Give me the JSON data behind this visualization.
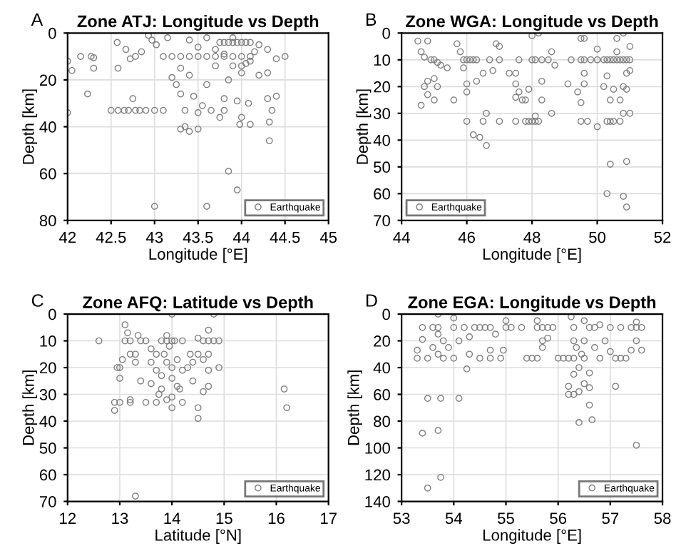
{
  "chart_data": [
    {
      "type": "scatter",
      "title": "Zone ATJ: Longitude vs Depth",
      "xlabel": "Longitude [°E]",
      "ylabel": "Depth [km]",
      "annotations": [
        "A"
      ],
      "xlim": [
        42,
        45
      ],
      "xticks": [
        42,
        42.5,
        43,
        43.5,
        44,
        44.5,
        45
      ],
      "ylim": [
        80,
        0
      ],
      "yticks": [
        0,
        20,
        40,
        60,
        80
      ],
      "grid": true,
      "legend": "bottom right",
      "marker": "circle",
      "series": [
        {
          "name": "Earthquake",
          "color": "#7f7f7f",
          "x": [
            42.0,
            42.05,
            42.15,
            42.27,
            42.3,
            42.3,
            42.23,
            42.0,
            42.5,
            42.58,
            42.65,
            42.7,
            42.78,
            42.83,
            42.9,
            43.0,
            43.1,
            42.57,
            42.58,
            42.67,
            42.72,
            42.78,
            42.85,
            42.75,
            42.93,
            42.97,
            43.0,
            43.02,
            43.1,
            43.2,
            43.3,
            43.4,
            43.5,
            43.6,
            43.7,
            43.8,
            43.9,
            44.0,
            44.1,
            43.15,
            43.2,
            43.25,
            43.3,
            43.35,
            43.3,
            43.4,
            43.35,
            43.5,
            43.5,
            43.55,
            43.6,
            43.75,
            43.8,
            43.85,
            43.9,
            43.95,
            44.0,
            44.05,
            44.1,
            43.9,
            44.0,
            44.05,
            44.1,
            43.7,
            43.4,
            43.5,
            43.6,
            43.7,
            43.8,
            44.2,
            44.3,
            44.4,
            44.5,
            44.3,
            44.2,
            43.85,
            43.8,
            43.8,
            43.85,
            43.95,
            43.95,
            44.0,
            43.98,
            44.08,
            44.1,
            44.3,
            44.35,
            44.4,
            44.32,
            44.32,
            43.75,
            43.65,
            43.45,
            43.6,
            43.4,
            43.3,
            44.15,
            43.9,
            44.0
          ],
          "values": [
            12,
            16,
            10,
            10,
            10.5,
            15,
            26,
            34,
            33,
            33,
            33,
            33,
            33,
            33,
            33,
            33,
            33,
            4,
            15,
            7,
            11,
            10,
            8,
            28,
            1,
            3,
            74,
            5,
            10,
            10,
            10,
            10,
            10,
            10,
            10,
            10,
            10,
            10,
            10,
            2,
            19,
            22,
            26,
            33,
            41,
            42,
            40,
            41,
            34,
            31,
            74,
            4,
            4,
            4,
            4,
            4,
            4,
            4,
            4,
            14,
            14,
            13,
            12,
            14,
            3,
            6,
            2,
            7,
            9,
            5,
            7,
            11,
            10,
            17,
            18,
            20,
            28,
            33,
            59,
            67,
            29,
            36,
            39,
            30,
            39,
            28,
            33,
            27,
            38,
            46,
            36,
            33,
            27,
            22,
            18,
            15,
            8,
            2,
            17
          ]
        }
      ]
    },
    {
      "type": "scatter",
      "title": "Zone WGA: Longitude vs Depth",
      "xlabel": "Longitude [°E]",
      "ylabel": "Depth [km]",
      "annotations": [
        "B"
      ],
      "xlim": [
        44,
        52
      ],
      "xticks": [
        44,
        46,
        48,
        50,
        52
      ],
      "ylim": [
        70,
        0
      ],
      "yticks": [
        0,
        10,
        20,
        30,
        40,
        50,
        60,
        70
      ],
      "grid": true,
      "legend": "bottom left",
      "marker": "circle",
      "series": [
        {
          "name": "Earthquake",
          "color": "#7f7f7f",
          "x": [
            44.5,
            44.6,
            44.7,
            44.8,
            44.9,
            45.0,
            45.1,
            45.2,
            45.4,
            44.8,
            44.7,
            44.8,
            44.6,
            45.0,
            45.0,
            45.1,
            45.6,
            45.7,
            45.8,
            45.9,
            46.0,
            46.1,
            46.2,
            46.3,
            45.9,
            46.0,
            46.0,
            46.0,
            46.2,
            46.4,
            46.6,
            46.5,
            46.6,
            46.3,
            46.5,
            46.7,
            46.8,
            46.9,
            47.0,
            47.0,
            47.0,
            47.3,
            47.5,
            47.5,
            47.5,
            47.5,
            47.7,
            47.8,
            47.6,
            47.8,
            47.9,
            48.0,
            48.1,
            48.2,
            48.1,
            47.9,
            48.0,
            48.2,
            48.1,
            48.0,
            47.6,
            48.3,
            48.5,
            48.3,
            48.6,
            48.3,
            48.6,
            48.7,
            49.1,
            49.2,
            49.5,
            49.6,
            49.8,
            49.4,
            49.5,
            49.5,
            49.7,
            49.6,
            49.6,
            49.5,
            49.6,
            50.0,
            50.0,
            50.0,
            50.2,
            50.3,
            50.4,
            50.5,
            50.6,
            50.7,
            50.8,
            50.9,
            51.0,
            50.2,
            50.3,
            50.4,
            50.5,
            50.7,
            50.4,
            50.5,
            50.4,
            50.3,
            50.8,
            50.9,
            50.9,
            50.8,
            51.0,
            50.7,
            50.6,
            50.8,
            51.0,
            50.9,
            51.0,
            50.8,
            50.9,
            50.3,
            50.6
          ],
          "values": [
            3,
            7,
            9,
            3,
            10,
            10,
            11,
            12,
            13,
            18,
            20,
            23,
            27,
            25,
            17,
            20,
            25,
            4,
            7,
            10,
            10,
            10,
            10,
            10,
            13,
            19,
            22,
            33,
            38,
            39,
            42,
            33,
            30,
            18,
            15,
            10,
            14,
            4,
            5,
            33,
            10,
            15,
            15,
            19,
            24,
            33,
            25,
            25,
            22,
            33,
            33,
            33,
            33,
            33,
            31,
            21,
            1,
            0,
            10,
            10,
            10,
            10,
            10,
            18,
            30,
            25,
            7,
            12,
            19,
            10,
            10,
            10,
            10,
            22,
            26,
            33,
            33,
            19,
            15,
            2,
            2,
            6,
            10,
            35,
            10,
            10,
            10,
            10,
            10,
            10,
            10,
            10,
            10,
            20,
            33,
            33,
            33,
            33,
            25,
            21,
            49,
            60,
            61,
            65,
            48,
            30,
            30,
            25,
            2,
            0,
            5,
            15,
            14,
            20,
            21,
            16,
            7
          ]
        }
      ]
    },
    {
      "type": "scatter",
      "title": "Zone AFQ: Latitude vs Depth",
      "xlabel": "Latitude [°N]",
      "ylabel": "Depth [km]",
      "annotations": [
        "C"
      ],
      "xlim": [
        12,
        17
      ],
      "xticks": [
        12,
        13,
        14,
        15,
        16,
        17
      ],
      "ylim": [
        70,
        0
      ],
      "yticks": [
        0,
        10,
        20,
        30,
        40,
        50,
        60,
        70
      ],
      "grid": true,
      "legend": "bottom right",
      "marker": "circle",
      "series": [
        {
          "name": "Earthquake",
          "color": "#7f7f7f",
          "x": [
            12.6,
            12.9,
            12.9,
            13.0,
            12.95,
            13.0,
            13.0,
            13.05,
            13.1,
            13.1,
            13.15,
            13.2,
            13.2,
            13.2,
            13.2,
            13.3,
            13.3,
            13.3,
            13.35,
            13.4,
            13.4,
            13.5,
            13.5,
            13.6,
            13.6,
            13.6,
            13.7,
            13.7,
            13.7,
            13.75,
            13.8,
            13.8,
            13.8,
            13.85,
            13.9,
            13.9,
            13.9,
            13.9,
            13.95,
            14.0,
            14.0,
            14.0,
            14.0,
            14.0,
            14.0,
            14.05,
            14.1,
            14.1,
            14.15,
            14.2,
            14.2,
            14.2,
            14.3,
            14.35,
            14.4,
            14.4,
            14.5,
            14.5,
            14.5,
            14.5,
            14.6,
            14.6,
            14.6,
            14.7,
            14.7,
            14.7,
            14.7,
            14.7,
            14.8,
            14.8,
            14.9,
            14.9,
            16.15,
            16.2
          ],
          "values": [
            10,
            36,
            33,
            33,
            20,
            24,
            20,
            17,
            10,
            4,
            7,
            10,
            15,
            32,
            33,
            15,
            18,
            68,
            8,
            10,
            25,
            10,
            33,
            18,
            13,
            26,
            33,
            21,
            15,
            30,
            10,
            23,
            28,
            15,
            10,
            32,
            18,
            8,
            12,
            10,
            0,
            20,
            24,
            31,
            35,
            10,
            17,
            27,
            28,
            10,
            21,
            33,
            20,
            15,
            18,
            25,
            9,
            15,
            35,
            39,
            10,
            17,
            29,
            6,
            10,
            15,
            21,
            27,
            0,
            10,
            10,
            20,
            28,
            35
          ]
        }
      ]
    },
    {
      "type": "scatter",
      "title": "Zone EGA: Longitude vs Depth",
      "xlabel": "Longitude [°E]",
      "ylabel": "Depth [km]",
      "annotations": [
        "D"
      ],
      "xlim": [
        53,
        58
      ],
      "xticks": [
        53,
        54,
        55,
        56,
        57,
        58
      ],
      "ylim": [
        140,
        0
      ],
      "yticks": [
        0,
        20,
        40,
        60,
        80,
        100,
        120,
        140
      ],
      "grid": true,
      "legend": "bottom right",
      "marker": "circle",
      "series": [
        {
          "name": "Earthquake",
          "color": "#7f7f7f",
          "x": [
            53.3,
            53.3,
            53.4,
            53.4,
            53.4,
            53.5,
            53.5,
            53.5,
            53.6,
            53.6,
            53.7,
            53.7,
            53.7,
            53.7,
            53.7,
            53.75,
            53.75,
            53.8,
            53.8,
            53.9,
            54.0,
            54.0,
            54.0,
            54.1,
            54.1,
            54.2,
            54.25,
            54.3,
            54.3,
            54.4,
            54.5,
            54.5,
            54.6,
            54.7,
            54.7,
            54.7,
            54.8,
            54.9,
            54.95,
            55.0,
            55.0,
            55.1,
            55.3,
            55.4,
            55.5,
            55.6,
            55.6,
            55.6,
            55.7,
            55.7,
            55.7,
            55.8,
            55.8,
            55.9,
            56.0,
            56.1,
            56.2,
            56.25,
            56.3,
            56.3,
            56.3,
            56.3,
            56.2,
            56.2,
            56.3,
            56.4,
            56.4,
            56.4,
            56.5,
            56.5,
            56.5,
            56.5,
            56.6,
            56.6,
            56.6,
            56.65,
            56.6,
            56.7,
            56.7,
            56.8,
            56.8,
            56.9,
            57.0,
            57.0,
            57.1,
            57.1,
            57.2,
            57.2,
            57.3,
            57.4,
            57.4,
            57.5,
            57.5,
            57.5,
            57.5,
            57.6,
            57.6,
            56.45,
            56.35
          ],
          "values": [
            27,
            33,
            10,
            19,
            89,
            33,
            63,
            130,
            10,
            25,
            0,
            10,
            15,
            30,
            87,
            63,
            122,
            20,
            33,
            25,
            10,
            3,
            33,
            63,
            20,
            10,
            41,
            17,
            30,
            10,
            10,
            33,
            10,
            10,
            27,
            33,
            15,
            33,
            27,
            5,
            10,
            10,
            10,
            33,
            33,
            33,
            5,
            10,
            10,
            20,
            25,
            10,
            18,
            10,
            33,
            33,
            33,
            2,
            10,
            20,
            33,
            45,
            54,
            60,
            60,
            40,
            58,
            81,
            52,
            33,
            20,
            5,
            10,
            55,
            68,
            79,
            44,
            10,
            25,
            8,
            33,
            20,
            10,
            28,
            33,
            54,
            10,
            33,
            33,
            10,
            27,
            10,
            6,
            20,
            98,
            10,
            27,
            30,
            25
          ]
        }
      ]
    }
  ]
}
